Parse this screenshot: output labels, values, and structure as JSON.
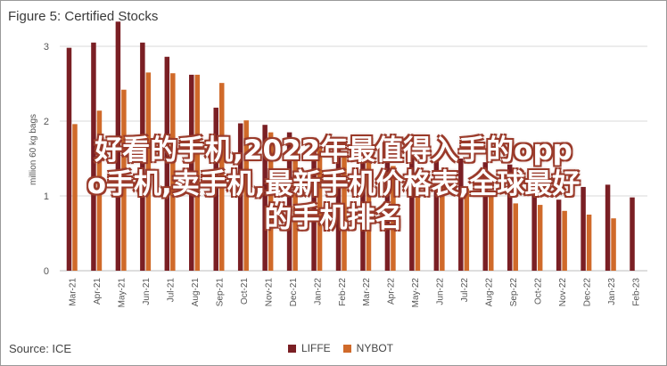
{
  "title": "Figure 5: Certified Stocks",
  "source": "Source: ICE",
  "overlay_lines": [
    "好看的手机,2022年最值得入手的opp",
    "o手机,卖手机,最新手机价格表,全球最好",
    "的手机排名"
  ],
  "colors": {
    "LIFFE": "#7a1f24",
    "NYBOT": "#d06a2a"
  },
  "chart_data": {
    "type": "bar",
    "title": "Figure 5: Certified Stocks",
    "ylabel": "million 60 kg bags",
    "xlabel": "",
    "ylim": [
      0,
      3
    ],
    "yticks": [
      0,
      1,
      2,
      3
    ],
    "grid": true,
    "legend": "bottom",
    "categories": [
      "Mar-21",
      "Apr-21",
      "May-21",
      "Jun-21",
      "Jul-21",
      "Aug-21",
      "Sep-21",
      "Oct-21",
      "Nov-21",
      "Dec-21",
      "Jan-22",
      "Feb-22",
      "Mar-22",
      "Apr-22",
      "May-22",
      "Jun-22",
      "Jul-22",
      "Aug-22",
      "Sep-22",
      "Oct-22",
      "Nov-22",
      "Dec-22",
      "Jan-23",
      "Feb-23"
    ],
    "series": [
      {
        "name": "LIFFE",
        "values": [
          2.98,
          3.05,
          3.33,
          3.05,
          2.86,
          2.62,
          2.18,
          1.97,
          1.95,
          1.85,
          1.78,
          1.75,
          1.7,
          1.65,
          1.6,
          1.55,
          1.5,
          1.45,
          1.42,
          1.15,
          0.95,
          1.12,
          1.15,
          0.98
        ]
      },
      {
        "name": "NYBOT",
        "values": [
          1.96,
          2.14,
          2.42,
          2.65,
          2.64,
          2.62,
          2.51,
          2.01,
          1.85,
          1.7,
          1.65,
          1.58,
          1.5,
          1.4,
          1.3,
          1.2,
          1.1,
          1.0,
          0.9,
          0.88,
          0.8,
          0.75,
          0.7,
          0.0
        ]
      }
    ]
  }
}
